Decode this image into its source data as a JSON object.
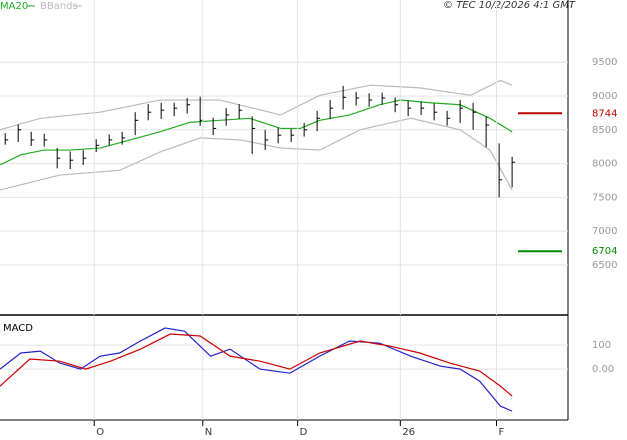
{
  "copyright": "© TEC 10/2/2026 4:1 GMT",
  "chart_data": [
    {
      "type": "ohlc",
      "title": "MA20",
      "x": [
        0,
        1,
        2,
        3,
        4,
        5,
        6,
        7,
        8,
        9,
        10,
        11,
        12,
        13,
        14,
        15,
        16,
        17,
        18,
        19,
        20,
        21,
        22,
        23,
        24,
        25,
        26,
        27,
        28,
        29,
        30,
        31,
        32,
        33,
        34,
        35,
        36,
        37,
        38,
        39
      ],
      "high": [
        8450,
        8580,
        8470,
        8440,
        8230,
        8180,
        8200,
        8360,
        8430,
        8470,
        8760,
        8880,
        8900,
        8900,
        8970,
        8990,
        8680,
        8820,
        8880,
        8700,
        8500,
        8530,
        8510,
        8600,
        8780,
        8940,
        9150,
        9060,
        9040,
        9050,
        8980,
        8930,
        8920,
        8890,
        8780,
        8940,
        8900,
        8700,
        8300,
        8100
      ],
      "low": [
        8280,
        8320,
        8260,
        8250,
        7930,
        7920,
        7980,
        8170,
        8270,
        8280,
        8420,
        8640,
        8660,
        8700,
        8740,
        8560,
        8420,
        8560,
        8660,
        8140,
        8200,
        8300,
        8320,
        8400,
        8480,
        8660,
        8800,
        8860,
        8840,
        8870,
        8760,
        8700,
        8720,
        8640,
        8560,
        8600,
        8500,
        8240,
        7500,
        7650
      ],
      "close": [
        8350,
        8500,
        8350,
        8350,
        8080,
        8050,
        8080,
        8270,
        8350,
        8380,
        8640,
        8760,
        8790,
        8820,
        8870,
        8640,
        8520,
        8720,
        8790,
        8520,
        8350,
        8420,
        8420,
        8500,
        8670,
        8820,
        8980,
        8970,
        8940,
        8970,
        8870,
        8820,
        8820,
        8760,
        8670,
        8820,
        8760,
        8570,
        7760,
        8020
      ],
      "color": "#000000",
      "series": [
        {
          "name": "MA20",
          "color": "#22aa22",
          "x": [
            -0.4,
            1.2,
            3,
            5,
            7.3,
            9.6,
            11.9,
            14.2,
            16.5,
            18.8,
            21.2,
            22.7,
            24.2,
            26.5,
            28.8,
            30.4,
            32.7,
            35,
            37.3,
            39
          ],
          "values": [
            7980,
            8130,
            8200,
            8200,
            8230,
            8350,
            8470,
            8610,
            8640,
            8670,
            8520,
            8520,
            8640,
            8720,
            8870,
            8940,
            8900,
            8870,
            8670,
            8470
          ]
        },
        {
          "name": "BBands",
          "color": "#bbbbbb",
          "x": [
            -0.4,
            2.7,
            7.3,
            11.9,
            16.5,
            21.2,
            24.2,
            28.1,
            31.9,
            35.8,
            38.1,
            39
          ],
          "values": [
            8500,
            8670,
            8760,
            8940,
            8940,
            8720,
            9010,
            9160,
            9120,
            9010,
            9230,
            9160
          ]
        },
        {
          "color": "#bbbbbb",
          "x": [
            -0.4,
            4.2,
            8.8,
            11.9,
            15,
            18.1,
            21.2,
            24.2,
            27.3,
            31.2,
            35,
            37.3,
            39
          ],
          "values": [
            7610,
            7830,
            7900,
            8170,
            8380,
            8350,
            8230,
            8200,
            8500,
            8670,
            8500,
            8200,
            7610
          ]
        }
      ],
      "levels": [
        {
          "value": 8744,
          "color": "#bb0000"
        },
        {
          "value": 6704,
          "color": "#008800"
        }
      ],
      "xlim": [
        -0.4,
        43.3
      ],
      "ylim": [
        5760,
        10420
      ],
      "yticks": [
        6500,
        7000,
        7500,
        8000,
        8500,
        9000,
        9500
      ],
      "grid": true
    },
    {
      "type": "line",
      "title": "MACD",
      "series": [
        {
          "color": "#2222cc",
          "x": [
            -0.4,
            1.2,
            2.7,
            4.2,
            5.8,
            7.3,
            8.8,
            10.4,
            12.3,
            13.8,
            15.8,
            17.3,
            19.6,
            21.9,
            24.2,
            26.5,
            28.8,
            31.2,
            33.5,
            35,
            36.5,
            38.1,
            39
          ],
          "values": [
            0,
            67,
            75,
            25,
            0,
            54,
            67,
            117,
            171,
            158,
            54,
            83,
            0,
            -17,
            54,
            117,
            108,
            54,
            12,
            0,
            -50,
            -154,
            -175
          ]
        },
        {
          "color": "#cc0000",
          "x": [
            -0.4,
            1.9,
            4.2,
            6.2,
            8.1,
            10.4,
            12.7,
            15,
            17.3,
            19.6,
            21.9,
            24.2,
            27.3,
            29.6,
            31.9,
            34.2,
            36.5,
            38.1,
            39
          ],
          "values": [
            -71,
            42,
            33,
            0,
            33,
            83,
            146,
            138,
            54,
            33,
            0,
            67,
            117,
            96,
            67,
            25,
            -8,
            -71,
            -112
          ]
        }
      ],
      "xlim": [
        -0.4,
        43.3
      ],
      "ylim": [
        -212,
        217
      ],
      "yticks": [
        {
          "value": 0,
          "label": "0.00"
        },
        100
      ],
      "xticks": [
        {
          "value": 6.85,
          "label": "O"
        },
        {
          "value": 15.2,
          "label": "N"
        },
        {
          "value": 22.5,
          "label": "D"
        },
        {
          "value": 30.4,
          "label": "26"
        },
        {
          "value": 37.8,
          "label": "F"
        }
      ],
      "grid": true
    }
  ]
}
